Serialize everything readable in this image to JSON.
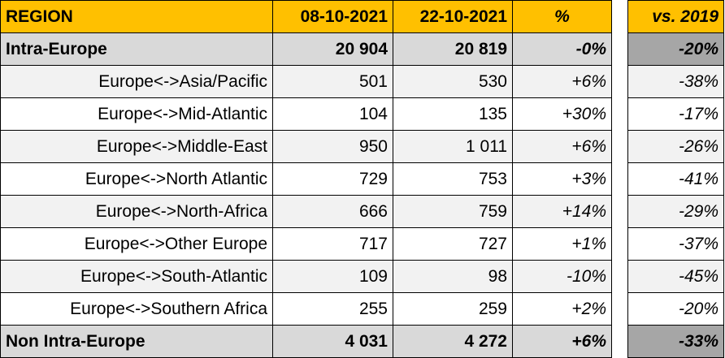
{
  "table": {
    "header": [
      "REGION",
      "08-10-2021",
      "22-10-2021",
      "%",
      "vs. 2019"
    ],
    "rows": [
      [
        "Intra-Europe",
        "20 904",
        "20 819",
        "-0%",
        "-20%"
      ],
      [
        "Europe<->Asia/Pacific",
        "501",
        "530",
        "+6%",
        "-38%"
      ],
      [
        "Europe<->Mid-Atlantic",
        "104",
        "135",
        "+30%",
        "-17%"
      ],
      [
        "Europe<->Middle-East",
        "950",
        "1 011",
        "+6%",
        "-26%"
      ],
      [
        "Europe<->North Atlantic",
        "729",
        "753",
        "+3%",
        "-41%"
      ],
      [
        "Europe<->North-Africa",
        "666",
        "759",
        "+14%",
        "-29%"
      ],
      [
        "Europe<->Other Europe",
        "717",
        "727",
        "+1%",
        "-37%"
      ],
      [
        "Europe<->South-Atlantic",
        "109",
        "98",
        "-10%",
        "-45%"
      ],
      [
        "Europe<->Southern Africa",
        "255",
        "259",
        "+2%",
        "-20%"
      ],
      [
        "Non Intra-Europe",
        "4 031",
        "4 272",
        "+6%",
        "-33%"
      ]
    ]
  }
}
